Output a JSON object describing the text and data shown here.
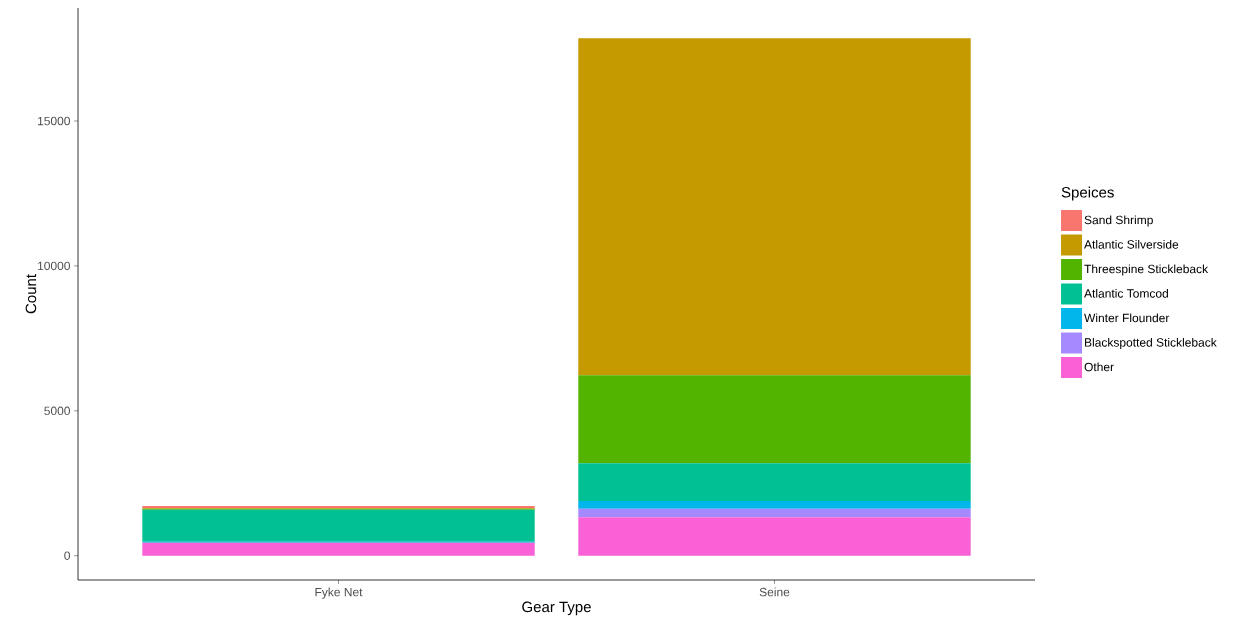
{
  "chart_data": {
    "type": "bar",
    "stacked": true,
    "xlabel": "Gear Type",
    "ylabel": "Count",
    "legend_title": "Speices",
    "legend": "right",
    "grid": false,
    "categories": [
      "Fyke Net",
      "Seine"
    ],
    "ylim": [
      -838,
      18900
    ],
    "yticks": [
      0,
      5000,
      10000,
      15000
    ],
    "series": [
      {
        "name": "Other",
        "color": "#fb61d7",
        "values": [
          449,
          1325
        ]
      },
      {
        "name": "Blackspotted Stickleback",
        "color": "#a58aff",
        "values": [
          0,
          297
        ]
      },
      {
        "name": "Winter Flounder",
        "color": "#00b6eb",
        "values": [
          34,
          266
        ]
      },
      {
        "name": "Atlantic Tomcod",
        "color": "#00c094",
        "values": [
          1105,
          1301
        ]
      },
      {
        "name": "Threespine Stickleback",
        "color": "#53b400",
        "values": [
          29,
          3038
        ]
      },
      {
        "name": "Atlantic Silverside",
        "color": "#c49a00",
        "values": [
          29,
          11632
        ]
      },
      {
        "name": "Sand Shrimp",
        "color": "#f8766d",
        "values": [
          70,
          0
        ]
      }
    ]
  }
}
